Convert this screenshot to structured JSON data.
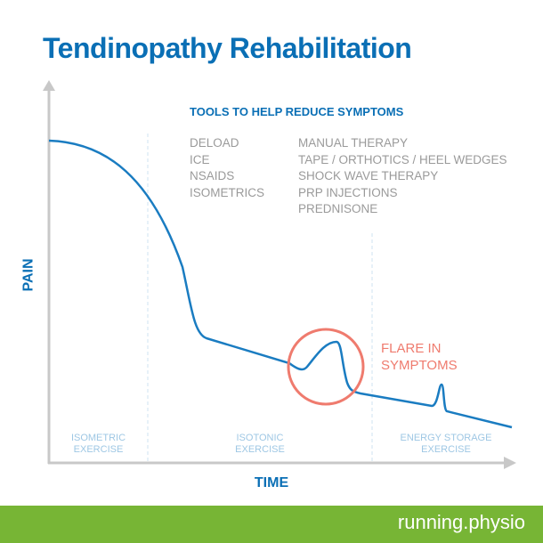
{
  "title": "Tendinopathy Rehabilitation",
  "tools": {
    "heading": "TOOLS TO HELP REDUCE SYMPTOMS",
    "column1": [
      "DELOAD",
      "ICE",
      "NSAIDS",
      "ISOMETRICS"
    ],
    "column2": [
      "MANUAL THERAPY",
      "TAPE / ORTHOTICS / HEEL WEDGES",
      "SHOCK WAVE THERAPY",
      "PRP INJECTIONS",
      "PREDNISONE"
    ]
  },
  "annotation": {
    "line1": "FLARE IN",
    "line2": "SYMPTOMS"
  },
  "axes": {
    "y_label": "PAIN",
    "x_label": "TIME"
  },
  "phases": [
    {
      "line1": "ISOMETRIC",
      "line2": "EXERCISE"
    },
    {
      "line1": "ISOTONIC",
      "line2": "EXERCISE"
    },
    {
      "line1": "ENERGY STORAGE",
      "line2": "EXERCISE"
    }
  ],
  "footer": {
    "brand": "running.physio"
  },
  "colors": {
    "primary": "#0a6fb5",
    "curve": "#1a7cc1",
    "flare": "#ef7b6e",
    "phase_text": "#9ec7e4",
    "axis": "#c8c8c8",
    "footer": "#77b535"
  }
}
